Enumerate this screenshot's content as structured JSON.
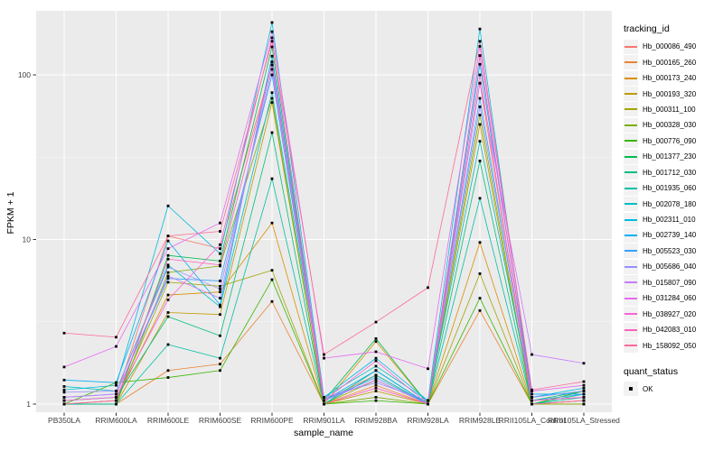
{
  "chart_data": {
    "type": "line",
    "title": "",
    "xlabel": "sample_name",
    "ylabel": "FPKM + 1",
    "y_scale": "log10",
    "ylim": [
      1,
      230
    ],
    "y_ticks": [
      1,
      10,
      100
    ],
    "y_tick_labels": [
      "1",
      "10",
      "100"
    ],
    "y_minor_ticks": [
      3.162,
      31.62
    ],
    "grid": "on",
    "legend_position": "right",
    "legend_title": "tracking_id",
    "quant_legend_title": "quant_status",
    "quant_legend_items": [
      "OK"
    ],
    "point_shape": "filled-square",
    "colors": {
      "background": "#FFFFFF",
      "panel_bg": "#EBEBEB",
      "grid": "#FFFFFF",
      "point": "#000000",
      "tick_text": "#404040",
      "legend_key_bg": "#F2F2F2"
    },
    "categories": [
      "PB350LA",
      "RRIM600LA",
      "RRIM600LE",
      "RRIM600SE",
      "RRIM600PE",
      "RRIM901LA",
      "RRIM928BA",
      "RRIM928LA",
      "RRIM928LE",
      "RRII105LA_Control",
      "RRII105LA_Stressed"
    ],
    "series": [
      {
        "name": "Hb_000086_490",
        "color": "#F8766D",
        "values": [
          1.05,
          1.1,
          10.5,
          8.8,
          115,
          1.05,
          1.5,
          1.0,
          89,
          1.05,
          1.1
        ]
      },
      {
        "name": "Hb_000165_260",
        "color": "#EA8331",
        "values": [
          1.0,
          1.0,
          1.6,
          1.75,
          4.2,
          1.0,
          1.3,
          1.0,
          3.7,
          1.0,
          1.05
        ]
      },
      {
        "name": "Hb_000173_240",
        "color": "#D89000",
        "values": [
          1.0,
          1.05,
          4.6,
          4.8,
          12.6,
          1.0,
          2.4,
          1.0,
          9.6,
          1.0,
          1.05
        ]
      },
      {
        "name": "Hb_000193_320",
        "color": "#C09B00",
        "values": [
          1.0,
          1.0,
          3.6,
          3.5,
          68,
          1.0,
          1.2,
          1.0,
          50,
          1.0,
          1.0
        ]
      },
      {
        "name": "Hb_000311_100",
        "color": "#A3A500",
        "values": [
          1.0,
          1.05,
          5.5,
          5.2,
          6.5,
          1.0,
          1.4,
          1.0,
          6.2,
          1.0,
          1.05
        ]
      },
      {
        "name": "Hb_000328_030",
        "color": "#7CAE00",
        "values": [
          1.0,
          1.0,
          6.3,
          6.9,
          72,
          1.0,
          1.1,
          1.0,
          57,
          1.0,
          1.0
        ]
      },
      {
        "name": "Hb_000776_090",
        "color": "#39B600",
        "values": [
          1.0,
          1.35,
          1.45,
          1.6,
          5.7,
          1.0,
          1.05,
          1.0,
          4.4,
          1.0,
          1.2
        ]
      },
      {
        "name": "Hb_001377_230",
        "color": "#00BB4E",
        "values": [
          1.0,
          1.0,
          8.0,
          7.4,
          148,
          1.05,
          2.5,
          1.0,
          131,
          1.05,
          1.2
        ]
      },
      {
        "name": "Hb_001712_030",
        "color": "#00BF7D",
        "values": [
          1.05,
          1.1,
          3.4,
          2.6,
          44.6,
          1.0,
          1.6,
          1.0,
          30,
          1.0,
          1.15
        ]
      },
      {
        "name": "Hb_001935_060",
        "color": "#00C1A3",
        "values": [
          1.0,
          1.0,
          2.3,
          1.9,
          23.4,
          1.0,
          1.5,
          1.0,
          17.8,
          1.0,
          1.1
        ]
      },
      {
        "name": "Hb_002078_180",
        "color": "#00BFC4",
        "values": [
          1.28,
          1.2,
          7.0,
          3.9,
          78,
          1.1,
          1.7,
          1.05,
          39.5,
          1.1,
          1.2
        ]
      },
      {
        "name": "Hb_002311_010",
        "color": "#00BAE0",
        "values": [
          1.22,
          1.3,
          16,
          8.2,
          208,
          1.1,
          1.9,
          1.05,
          190,
          1.1,
          1.25
        ]
      },
      {
        "name": "Hb_002739_140",
        "color": "#00B0F6",
        "values": [
          1.4,
          1.35,
          9.8,
          4.0,
          130,
          1.05,
          1.6,
          1.0,
          116,
          1.15,
          1.15
        ]
      },
      {
        "name": "Hb_005523_030",
        "color": "#35A2FF",
        "values": [
          1.1,
          1.15,
          5.8,
          5.6,
          100,
          1.05,
          1.45,
          1.0,
          72,
          1.05,
          1.15
        ]
      },
      {
        "name": "Hb_005686_040",
        "color": "#9590FF",
        "values": [
          1.18,
          1.2,
          6.8,
          5.0,
          108,
          1.1,
          1.35,
          1.05,
          64,
          1.1,
          1.2
        ]
      },
      {
        "name": "Hb_015807_090",
        "color": "#C77CFF",
        "values": [
          1.1,
          1.15,
          6.0,
          4.4,
          120,
          1.05,
          1.4,
          1.0,
          89,
          2.0,
          1.77
        ]
      },
      {
        "name": "Hb_031284_060",
        "color": "#E76BF3",
        "values": [
          1.68,
          2.24,
          8.8,
          12.6,
          183,
          1.9,
          2.08,
          1.64,
          149,
          1.2,
          1.3
        ]
      },
      {
        "name": "Hb_038927_020",
        "color": "#FA62DB",
        "values": [
          1.05,
          1.1,
          4.3,
          9.3,
          168,
          1.05,
          1.83,
          1.0,
          131,
          1.05,
          1.1
        ]
      },
      {
        "name": "Hb_042083_010",
        "color": "#FF62BC",
        "values": [
          1.0,
          1.05,
          7.6,
          7.0,
          115,
          1.0,
          1.25,
          1.0,
          100,
          1.0,
          1.05
        ]
      },
      {
        "name": "Hb_158092_050",
        "color": "#FF6A98",
        "values": [
          2.7,
          2.55,
          10.5,
          11.2,
          160,
          2.0,
          3.15,
          5.1,
          160,
          1.22,
          1.37
        ]
      }
    ]
  }
}
